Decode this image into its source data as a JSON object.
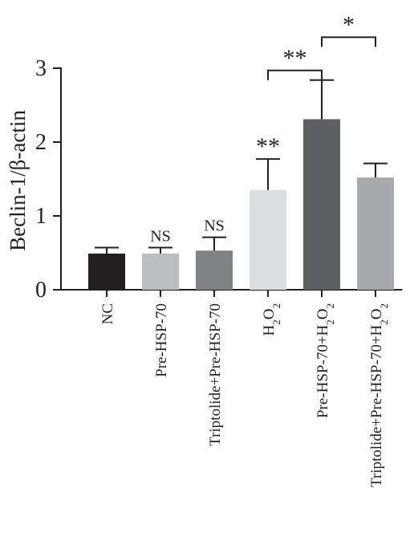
{
  "chart_data": {
    "type": "bar",
    "ylabel": "Beclin-1/β-actin",
    "ylim": [
      0,
      3
    ],
    "yticks": [
      0,
      1,
      2,
      3
    ],
    "grid": false,
    "categories": [
      {
        "text": "NC"
      },
      {
        "text": "Pre-HSP-70"
      },
      {
        "text": "Triptolide+Pre-HSP-70"
      },
      {
        "parts": [
          {
            "t": "H"
          },
          {
            "t": "2",
            "sub": true
          },
          {
            "t": "O"
          },
          {
            "t": "2",
            "sub": true
          }
        ]
      },
      {
        "parts": [
          {
            "t": "Pre-HSP-70+H"
          },
          {
            "t": "2",
            "sub": true
          },
          {
            "t": "O"
          },
          {
            "t": "2",
            "sub": true
          }
        ]
      },
      {
        "parts": [
          {
            "t": "Triptolide+Pre-HSP-70+H"
          },
          {
            "t": "2",
            "sub": true
          },
          {
            "t": "O"
          },
          {
            "t": "2",
            "sub": true
          }
        ]
      }
    ],
    "values": [
      0.49,
      0.49,
      0.53,
      1.35,
      2.31,
      1.52
    ],
    "errors": [
      0.08,
      0.08,
      0.18,
      0.42,
      0.53,
      0.19
    ],
    "colors": [
      "#231f20",
      "#bbbdc0",
      "#808285",
      "#dcdddf",
      "#5e5f61",
      "#a7a9ac"
    ],
    "annotations": [
      "",
      "NS",
      "NS",
      "**",
      "",
      ""
    ],
    "brackets": [
      {
        "from": 3,
        "to": 4,
        "label": "**",
        "y": 2.97
      },
      {
        "from": 4,
        "to": 5,
        "label": "*",
        "y": 3.42
      }
    ]
  }
}
